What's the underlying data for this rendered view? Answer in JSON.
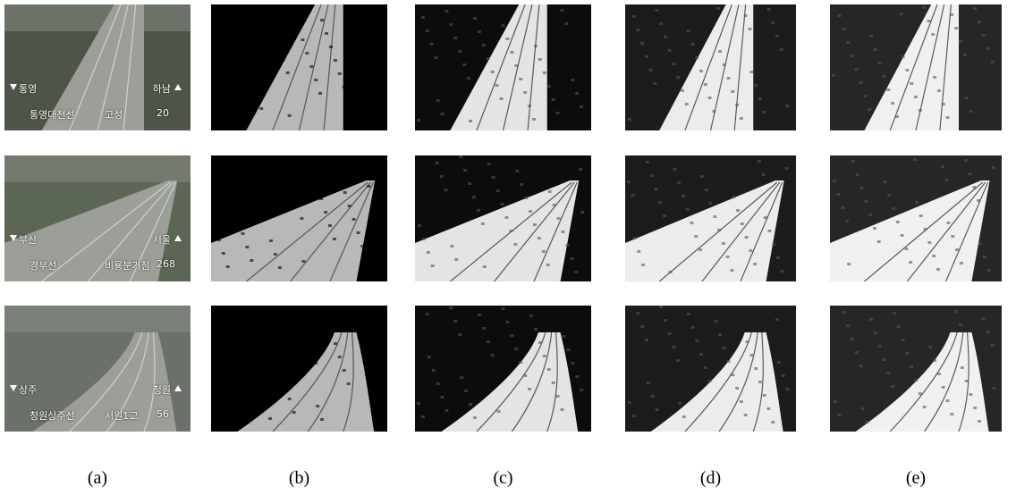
{
  "figure": {
    "panels": [
      {
        "label": "(a)"
      },
      {
        "label": "(b)"
      },
      {
        "label": "(c)"
      },
      {
        "label": "(d)"
      },
      {
        "label": "(e)"
      }
    ],
    "overlays": [
      {
        "left_dir": "통영",
        "right_dir": "하남",
        "line": "통영대전선",
        "place": "고성",
        "number": 20
      },
      {
        "left_dir": "부산",
        "right_dir": "서울",
        "line": "경부선",
        "place": "비룡분기점",
        "number": 268
      },
      {
        "left_dir": "상주",
        "right_dir": "청원",
        "line": "청원상주선",
        "place": "서원1교",
        "number": 56
      }
    ]
  }
}
